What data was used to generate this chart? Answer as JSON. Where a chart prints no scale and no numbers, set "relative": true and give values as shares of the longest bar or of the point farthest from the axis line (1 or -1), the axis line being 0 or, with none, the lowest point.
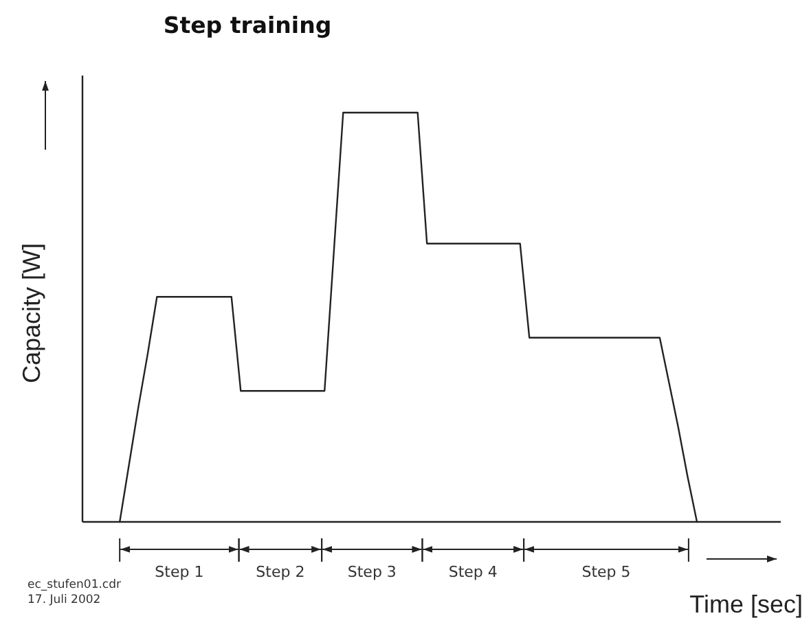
{
  "chart_data": {
    "type": "line",
    "title": "Step training",
    "xlabel": "Time [sec]",
    "ylabel": "Capacity [W]",
    "relative": true,
    "categories": [
      null,
      null,
      null,
      null,
      null,
      null,
      null,
      null,
      null,
      null,
      null,
      null,
      null,
      null,
      null,
      null,
      null,
      null,
      null,
      null,
      null,
      null,
      null,
      null,
      null,
      null,
      null,
      null,
      null,
      null,
      null,
      null,
      null,
      null,
      null,
      null,
      null,
      null,
      null,
      null,
      null,
      null,
      null,
      null,
      null,
      null,
      null,
      null,
      null,
      null,
      null,
      null,
      null,
      null,
      null,
      null,
      null,
      null,
      null,
      null,
      null,
      null,
      null,
      null,
      null,
      null,
      null,
      null,
      null,
      null,
      null,
      null,
      null,
      null,
      null,
      null
    ],
    "series": [
      {
        "color": "#222222",
        "values": [
          null,
          null,
          null,
          null,
          0,
          0.14,
          0.28,
          0.41,
          0.55,
          0.55,
          0.55,
          0.55,
          0.55,
          0.55,
          0.55,
          0.55,
          0.55,
          0.32,
          0.32,
          0.32,
          0.32,
          0.32,
          0.32,
          0.32,
          0.32,
          0.32,
          0.32,
          0.66,
          1,
          1,
          1,
          1,
          1,
          1,
          1,
          1,
          1,
          0.68,
          0.68,
          0.68,
          0.68,
          0.68,
          0.68,
          0.68,
          0.68,
          0.68,
          0.68,
          0.68,
          0.45,
          0.45,
          0.45,
          0.45,
          0.45,
          0.45,
          0.45,
          0.45,
          0.45,
          0.45,
          0.45,
          0.45,
          0.45,
          0.45,
          0.45,
          0.34,
          0.23,
          0.11,
          0,
          null,
          null,
          null,
          null,
          null,
          null,
          null,
          null,
          null
        ]
      }
    ],
    "annotations": [
      "Step 1",
      "Step 2",
      "Step 3",
      "Step 4",
      "Step 5",
      "ec_stufen01.cdr",
      "17. Juli 2002"
    ]
  }
}
